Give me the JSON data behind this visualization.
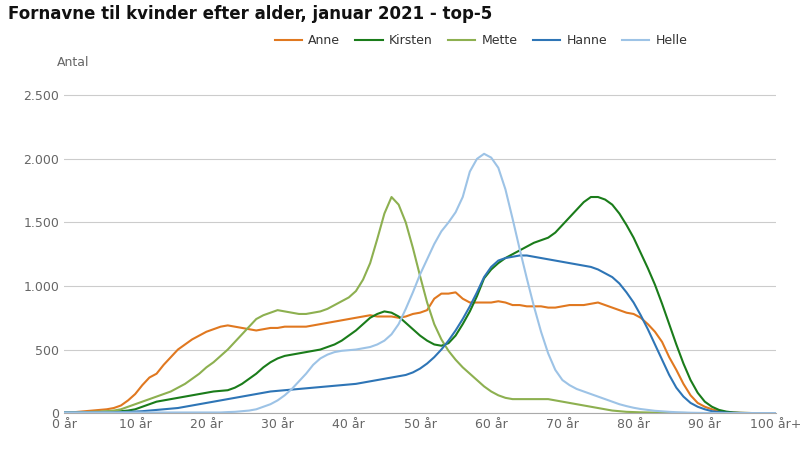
{
  "title": "Fornavne til kvinder efter alder, januar 2021 - top-5",
  "ylabel": "Antal",
  "background_color": "#ffffff",
  "grid_color": "#cccccc",
  "series": {
    "Anne": {
      "color": "#e07820",
      "values": [
        5,
        5,
        10,
        15,
        20,
        25,
        30,
        40,
        60,
        100,
        150,
        220,
        280,
        310,
        380,
        440,
        500,
        540,
        580,
        610,
        640,
        660,
        680,
        690,
        680,
        670,
        660,
        650,
        660,
        670,
        670,
        680,
        680,
        680,
        680,
        690,
        700,
        710,
        720,
        730,
        740,
        750,
        760,
        770,
        760,
        760,
        760,
        750,
        760,
        780,
        790,
        810,
        900,
        940,
        940,
        950,
        900,
        870,
        870,
        870,
        870,
        880,
        870,
        850,
        850,
        840,
        840,
        840,
        830,
        830,
        840,
        850,
        850,
        850,
        860,
        870,
        850,
        830,
        810,
        790,
        780,
        750,
        700,
        640,
        560,
        440,
        340,
        230,
        140,
        80,
        50,
        30,
        15,
        8,
        4,
        2,
        1,
        0,
        0,
        0,
        0
      ]
    },
    "Kirsten": {
      "color": "#1a7c1a",
      "values": [
        5,
        5,
        5,
        5,
        8,
        8,
        10,
        12,
        15,
        20,
        30,
        50,
        70,
        90,
        100,
        110,
        120,
        130,
        140,
        150,
        160,
        170,
        175,
        180,
        200,
        230,
        270,
        310,
        360,
        400,
        430,
        450,
        460,
        470,
        480,
        490,
        500,
        520,
        540,
        570,
        610,
        650,
        700,
        750,
        780,
        800,
        790,
        760,
        710,
        660,
        610,
        570,
        540,
        530,
        550,
        610,
        700,
        800,
        920,
        1060,
        1130,
        1180,
        1220,
        1250,
        1280,
        1310,
        1340,
        1360,
        1380,
        1420,
        1480,
        1540,
        1600,
        1660,
        1700,
        1700,
        1680,
        1640,
        1570,
        1480,
        1380,
        1260,
        1140,
        1010,
        860,
        700,
        540,
        390,
        260,
        160,
        90,
        50,
        25,
        12,
        5,
        2,
        1,
        0,
        0,
        0,
        0
      ]
    },
    "Mette": {
      "color": "#8db050",
      "values": [
        5,
        5,
        5,
        8,
        10,
        12,
        15,
        20,
        30,
        50,
        70,
        90,
        110,
        130,
        150,
        170,
        200,
        230,
        270,
        310,
        360,
        400,
        450,
        500,
        560,
        620,
        680,
        740,
        770,
        790,
        810,
        800,
        790,
        780,
        780,
        790,
        800,
        820,
        850,
        880,
        910,
        960,
        1050,
        1180,
        1370,
        1570,
        1700,
        1640,
        1500,
        1300,
        1080,
        870,
        700,
        580,
        490,
        420,
        360,
        310,
        260,
        210,
        170,
        140,
        120,
        110,
        110,
        110,
        110,
        110,
        110,
        100,
        90,
        80,
        70,
        60,
        50,
        40,
        30,
        20,
        15,
        10,
        8,
        6,
        5,
        4,
        3,
        2,
        1,
        1,
        0,
        0,
        0,
        0,
        0,
        0,
        0,
        0,
        0,
        0,
        0,
        0,
        0
      ]
    },
    "Hanne": {
      "color": "#2e75b6",
      "values": [
        5,
        5,
        5,
        5,
        5,
        5,
        5,
        5,
        8,
        10,
        12,
        15,
        20,
        25,
        30,
        35,
        40,
        50,
        60,
        70,
        80,
        90,
        100,
        110,
        120,
        130,
        140,
        150,
        160,
        170,
        175,
        180,
        185,
        190,
        195,
        200,
        205,
        210,
        215,
        220,
        225,
        230,
        240,
        250,
        260,
        270,
        280,
        290,
        300,
        320,
        350,
        390,
        440,
        500,
        570,
        650,
        740,
        840,
        950,
        1070,
        1150,
        1200,
        1220,
        1230,
        1240,
        1240,
        1230,
        1220,
        1210,
        1200,
        1190,
        1180,
        1170,
        1160,
        1150,
        1130,
        1100,
        1070,
        1020,
        950,
        870,
        770,
        660,
        540,
        420,
        300,
        200,
        130,
        80,
        50,
        30,
        15,
        8,
        4,
        2,
        1,
        0,
        0,
        0,
        0,
        0
      ]
    },
    "Helle": {
      "color": "#9dc3e6",
      "values": [
        5,
        5,
        5,
        5,
        5,
        5,
        5,
        5,
        5,
        5,
        5,
        5,
        5,
        5,
        5,
        5,
        5,
        5,
        5,
        5,
        5,
        5,
        5,
        8,
        10,
        15,
        20,
        30,
        50,
        70,
        100,
        140,
        190,
        250,
        310,
        380,
        430,
        460,
        480,
        490,
        495,
        500,
        510,
        520,
        540,
        570,
        620,
        700,
        820,
        950,
        1090,
        1210,
        1330,
        1430,
        1500,
        1580,
        1700,
        1900,
        2000,
        2040,
        2010,
        1930,
        1760,
        1530,
        1290,
        1060,
        840,
        640,
        470,
        340,
        260,
        220,
        190,
        170,
        150,
        130,
        110,
        90,
        70,
        55,
        42,
        32,
        25,
        18,
        14,
        10,
        7,
        5,
        3,
        2,
        1,
        1,
        0,
        0,
        0,
        0,
        0,
        0,
        0,
        0,
        0
      ]
    }
  },
  "xtick_labels": [
    "0 år",
    "10 år",
    "20 år",
    "30 år",
    "40 år",
    "50 år",
    "60 år",
    "70 år",
    "80 år",
    "90 år",
    "100 år+"
  ],
  "xtick_positions": [
    0,
    10,
    20,
    30,
    40,
    50,
    60,
    70,
    80,
    90,
    100
  ],
  "ytick_labels": [
    "0",
    "500",
    "1.000",
    "1.500",
    "2.000",
    "2.500"
  ],
  "ytick_values": [
    0,
    500,
    1000,
    1500,
    2000,
    2500
  ],
  "ylim": [
    0,
    2600
  ],
  "xlim": [
    0,
    100
  ]
}
